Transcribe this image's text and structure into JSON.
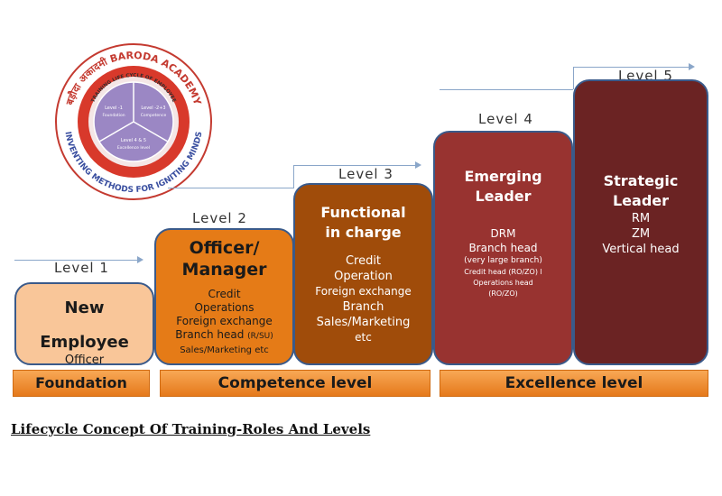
{
  "logo": {
    "ring_text": "बड़ौदा अकादमी BARODA ACADEMY",
    "ring_bottom_text": "INVENTING METHODS FOR IGNITING MINDS",
    "inner_ring_text": "TRAINING LIFE CYCLE OF EMPLOYEE",
    "segments": [
      {
        "title": "Level -1",
        "sub": "Foundation"
      },
      {
        "title": "Level -2+3",
        "sub": "Competence"
      },
      {
        "title": "Level 4 & 5",
        "sub": "Excellence level"
      }
    ],
    "colors": {
      "outer": "#d8392b",
      "inner": "#9b87c4",
      "ring": "#ffffff"
    }
  },
  "levels": [
    {
      "label": "Level 1"
    },
    {
      "label": "Level 2"
    },
    {
      "label": "Level 3"
    },
    {
      "label": "Level 4"
    },
    {
      "label": "Level 5"
    }
  ],
  "roles": [
    {
      "title_lines": [
        "New",
        "Employee"
      ],
      "lines": [
        "Officer"
      ]
    },
    {
      "title_lines": [
        "Officer/",
        "Manager"
      ],
      "lines": [
        "Credit",
        "Operations",
        "Foreign exchange",
        "Branch head",
        "Sales/Marketing etc"
      ],
      "branch_suffix": "(R/SU)"
    },
    {
      "title_lines": [
        "Functional",
        "in charge"
      ],
      "lines": [
        "Credit",
        "Operation",
        "Foreign exchange",
        "Branch",
        "Sales/Marketing",
        "etc"
      ]
    },
    {
      "title_lines": [
        "Emerging",
        "Leader"
      ],
      "lines": [
        "DRM",
        "Branch head",
        "(very large branch)",
        "Credit head (RO/ZO) l",
        "Operations head",
        "(RO/ZO)"
      ]
    },
    {
      "title_lines": [
        "Strategic",
        "Leader"
      ],
      "lines": [
        "RM",
        "ZM",
        "Vertical head"
      ]
    }
  ],
  "bars": [
    {
      "label": "Foundation"
    },
    {
      "label": "Competence level"
    },
    {
      "label": "Excellence level"
    }
  ],
  "caption": "Lifecycle Concept Of Training-Roles And Levels"
}
